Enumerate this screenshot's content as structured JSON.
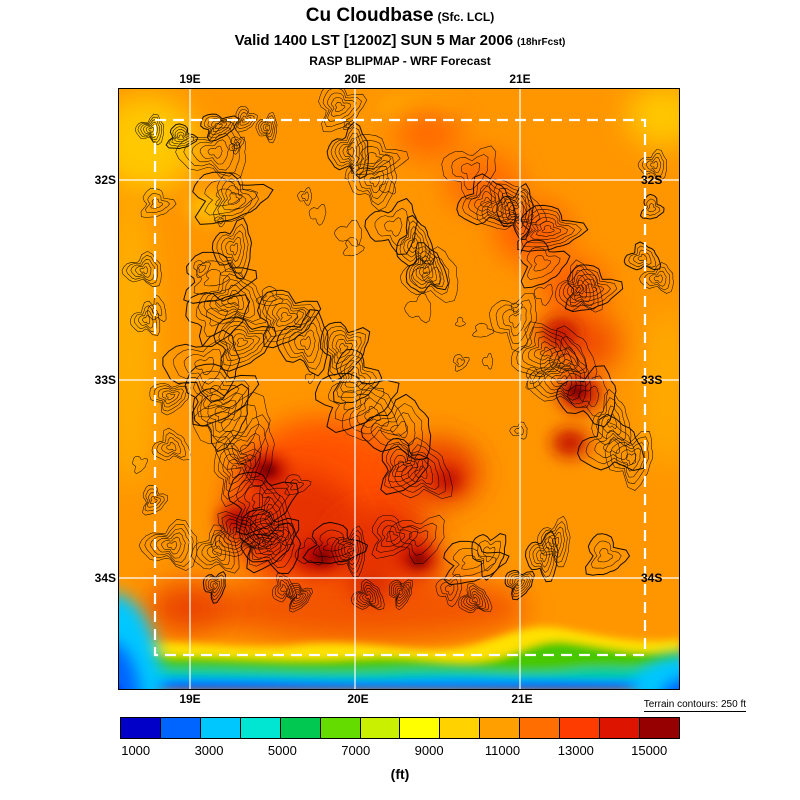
{
  "header": {
    "title": "Cu Cloudbase",
    "title_suffix": "(Sfc. LCL)",
    "valid_line": "Valid 1400 LST [1200Z] SUN 5 Mar 2006",
    "valid_suffix": "(18hrFcst)",
    "model_line": "RASP BLIPMAP - WRF Forecast"
  },
  "map": {
    "x_ticks_top": [
      "19E",
      "20E",
      "21E"
    ],
    "x_ticks_bottom": [
      "19E",
      "20E",
      "21E"
    ],
    "y_ticks_left": [
      "32S",
      "33S",
      "34S"
    ],
    "y_ticks_right": [
      "32S",
      "33S",
      "34S"
    ]
  },
  "footer": {
    "terrain_note": "Terrain contours: 250 ft",
    "units_label": "(ft)"
  },
  "colors": {
    "field_base": "#ff9600",
    "grid_line": "#ffffff",
    "contour_line": "#000000",
    "inner_boundary": "#ffffff"
  },
  "chart_data": {
    "type": "heatmap",
    "title": "Cu Cloudbase (Sfc. LCL)",
    "subtitle": "Valid 1400 LST [1200Z] SUN 5 Mar 2006 (18hrFcst)",
    "source": "RASP BLIPMAP - WRF Forecast",
    "x_ticks": [
      "19E",
      "20E",
      "21E"
    ],
    "y_ticks": [
      "32S",
      "33S",
      "34S"
    ],
    "grid": true,
    "legend_position": "bottom",
    "colorbar": {
      "units": "(ft)",
      "tick_labels": [
        "1000",
        "3000",
        "5000",
        "7000",
        "9000",
        "11000",
        "13000",
        "15000"
      ],
      "colors": [
        "#0000c8",
        "#0064ff",
        "#00c8ff",
        "#00e6d2",
        "#00c850",
        "#64dc00",
        "#c8f000",
        "#ffff00",
        "#ffd200",
        "#ffa000",
        "#ff6e00",
        "#ff3c00",
        "#dc1400",
        "#960000"
      ]
    },
    "overlay": "Terrain contours: 250 ft",
    "field_summary": {
      "interior": "Cloudbase mostly 9000-13000 ft (orange shades) across the interior",
      "hotspots": "Pockets of 13000-15000 ft (red to dark red) over west-central and central mountain areas and east-central ranges",
      "coast": "Sharp drop to 1000-5000 ft (yellow-green-cyan-blue band) along the southern edge, deepest blue in the bottom-left and bottom-right corners",
      "corners": "Lighter 7000-9000 ft (yellow) patches near the northwest and northeast corners"
    }
  }
}
